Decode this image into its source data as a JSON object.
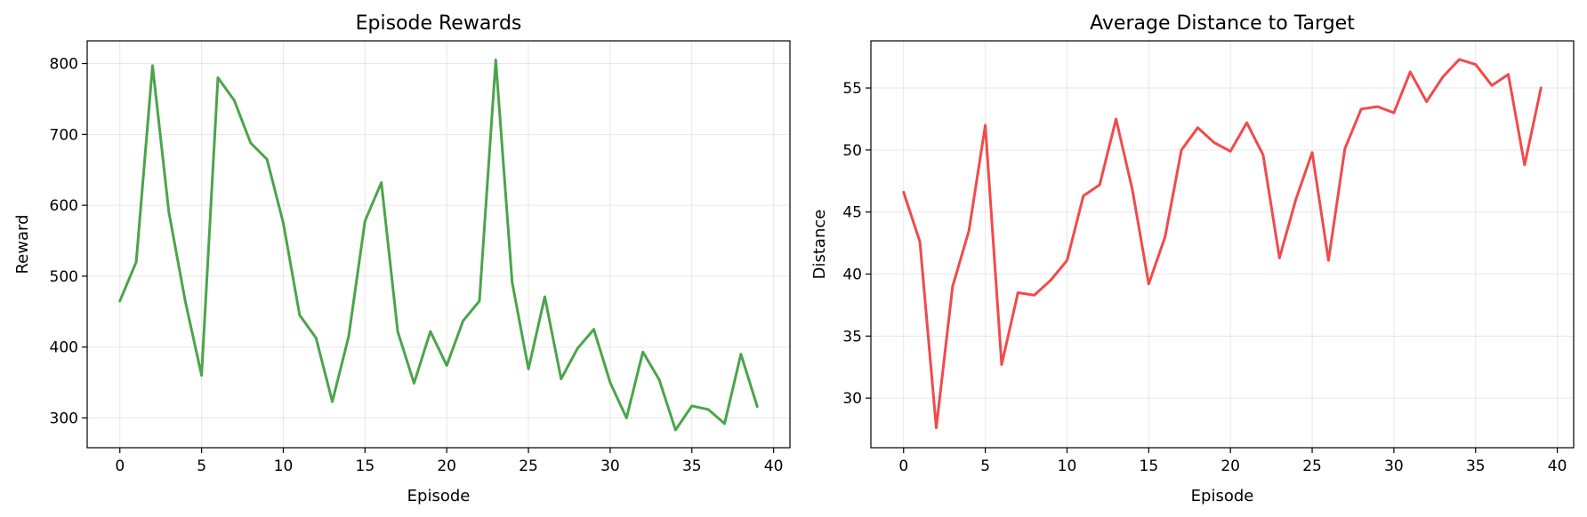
{
  "chart_data": [
    {
      "type": "line",
      "title": "Episode Rewards",
      "xlabel": "Episode",
      "ylabel": "Reward",
      "xlim": [
        -2,
        41
      ],
      "ylim": [
        258,
        832
      ],
      "xticks": [
        0,
        5,
        10,
        15,
        20,
        25,
        30,
        35,
        40
      ],
      "yticks": [
        300,
        400,
        500,
        600,
        700,
        800
      ],
      "grid": true,
      "color": "#4aa54a",
      "x": [
        0,
        1,
        2,
        3,
        4,
        5,
        6,
        7,
        8,
        9,
        10,
        11,
        12,
        13,
        14,
        15,
        16,
        17,
        18,
        19,
        20,
        21,
        22,
        23,
        24,
        25,
        26,
        27,
        28,
        29,
        30,
        31,
        32,
        33,
        34,
        35,
        36,
        37,
        38,
        39
      ],
      "values": [
        465,
        520,
        797,
        590,
        465,
        360,
        780,
        748,
        688,
        665,
        575,
        445,
        413,
        323,
        415,
        578,
        632,
        422,
        349,
        422,
        374,
        437,
        465,
        805,
        492,
        369,
        471,
        355,
        398,
        425,
        350,
        300,
        393,
        354,
        283,
        317,
        312,
        292,
        390,
        316
      ]
    },
    {
      "type": "line",
      "title": "Average Distance to Target",
      "xlabel": "Episode",
      "ylabel": "Distance",
      "xlim": [
        -2,
        41
      ],
      "ylim": [
        26.0,
        58.8
      ],
      "xticks": [
        0,
        5,
        10,
        15,
        20,
        25,
        30,
        35,
        40
      ],
      "yticks": [
        30,
        35,
        40,
        45,
        50,
        55
      ],
      "grid": true,
      "color": "#f24a4a",
      "x": [
        0,
        1,
        2,
        3,
        4,
        5,
        6,
        7,
        8,
        9,
        10,
        11,
        12,
        13,
        14,
        15,
        16,
        17,
        18,
        19,
        20,
        21,
        22,
        23,
        24,
        25,
        26,
        27,
        28,
        29,
        30,
        31,
        32,
        33,
        34,
        35,
        36,
        37,
        38,
        39
      ],
      "values": [
        46.6,
        42.6,
        27.6,
        39.0,
        43.5,
        52.0,
        32.7,
        38.5,
        38.3,
        39.5,
        41.1,
        46.3,
        47.2,
        52.5,
        46.8,
        39.2,
        43.0,
        50.0,
        51.8,
        50.6,
        49.9,
        52.2,
        49.6,
        41.3,
        46.0,
        49.8,
        41.1,
        50.1,
        53.3,
        53.5,
        53.0,
        56.3,
        53.9,
        55.9,
        57.3,
        56.9,
        55.2,
        56.1,
        48.8,
        55.0
      ]
    }
  ]
}
